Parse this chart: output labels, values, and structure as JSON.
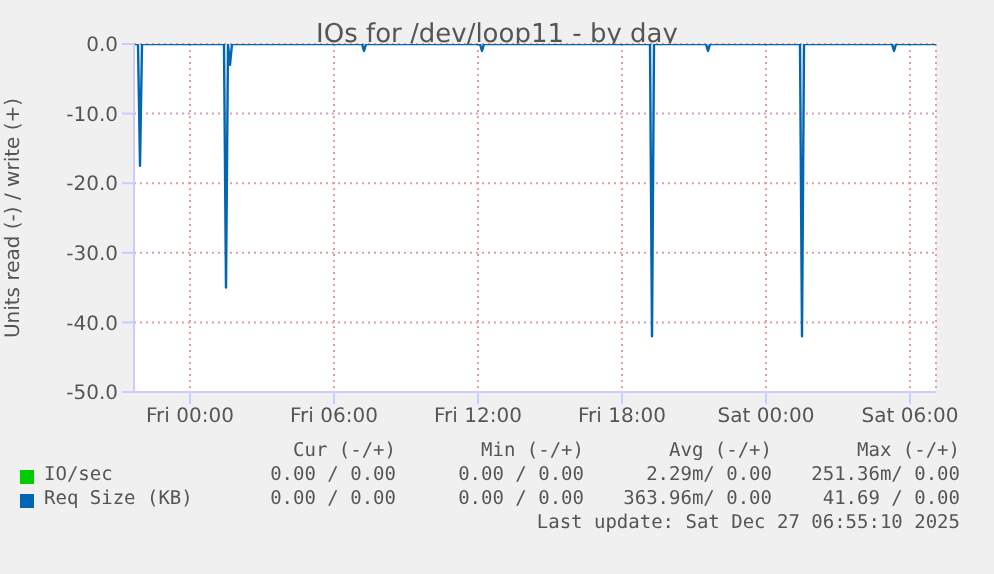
{
  "chart_data": {
    "type": "line",
    "title": "IOs for /dev/loop11 - by day",
    "ylabel": "Units read (-) / write (+)",
    "x": [
      "2025-12-25T21:40",
      "2025-12-25T21:50",
      "2025-12-25T21:55",
      "2025-12-25T22:00",
      "2025-12-26T01:25",
      "2025-12-26T01:30",
      "2025-12-26T01:35",
      "2025-12-26T01:40",
      "2025-12-26T01:45",
      "2025-12-26T01:50",
      "2025-12-26T07:10",
      "2025-12-26T07:15",
      "2025-12-26T07:20",
      "2025-12-26T12:05",
      "2025-12-26T12:10",
      "2025-12-26T12:15",
      "2025-12-26T19:10",
      "2025-12-26T19:15",
      "2025-12-26T19:20",
      "2025-12-26T19:25",
      "2025-12-26T21:30",
      "2025-12-26T21:35",
      "2025-12-26T21:40",
      "2025-12-27T01:25",
      "2025-12-27T01:30",
      "2025-12-27T01:35",
      "2025-12-27T01:40",
      "2025-12-27T05:15",
      "2025-12-27T05:20",
      "2025-12-27T05:25",
      "2025-12-27T07:05"
    ],
    "series": [
      {
        "name": "IO/sec",
        "color": "#00cc00",
        "values": [
          null,
          null,
          null,
          null,
          null,
          null,
          null,
          null,
          null,
          null,
          null,
          null,
          null,
          null,
          null,
          null,
          null,
          null,
          null,
          null,
          null,
          null,
          null,
          null,
          null,
          null,
          null,
          null,
          null,
          null,
          null
        ]
      },
      {
        "name": "Req Size (KB)",
        "color": "#0066b3",
        "values": [
          0,
          0,
          -17.5,
          0,
          0,
          -35,
          0,
          -3,
          0,
          0,
          0,
          -1,
          0,
          0,
          -1,
          0,
          0,
          -42,
          0,
          0,
          0,
          -1,
          0,
          0,
          -42,
          0,
          0,
          0,
          -1,
          0,
          0
        ]
      }
    ],
    "xlim": [
      "2025-12-25T21:40",
      "2025-12-27T07:05"
    ],
    "xticks": [
      {
        "value": "2025-12-26T00:00",
        "label": "Fri 00:00"
      },
      {
        "value": "2025-12-26T06:00",
        "label": "Fri 06:00"
      },
      {
        "value": "2025-12-26T12:00",
        "label": "Fri 12:00"
      },
      {
        "value": "2025-12-26T18:00",
        "label": "Fri 18:00"
      },
      {
        "value": "2025-12-27T00:00",
        "label": "Sat 00:00"
      },
      {
        "value": "2025-12-27T06:00",
        "label": "Sat 06:00"
      }
    ],
    "ylim": [
      -50,
      0
    ],
    "yticks": [
      {
        "value": -50,
        "label": "-50.0"
      },
      {
        "value": -40,
        "label": "-40.0"
      },
      {
        "value": -30,
        "label": "-30.0"
      },
      {
        "value": -20,
        "label": "-20.0"
      },
      {
        "value": -10,
        "label": "-10.0"
      },
      {
        "value": 0,
        "label": "0.0"
      }
    ],
    "grid": true,
    "legend": "bottom",
    "annotations": [
      "Cur (-/+)",
      "Min (-/+)",
      "Avg (-/+)",
      "Max (-/+)",
      "0.00 / 0.00",
      "0.00 / 0.00",
      "2.29m/ 0.00",
      "251.36m/ 0.00",
      "0.00 / 0.00",
      "0.00 / 0.00",
      "363.96m/ 0.00",
      "41.69 / 0.00",
      "Last update: Sat Dec 27 06:55:10 2025"
    ]
  }
}
